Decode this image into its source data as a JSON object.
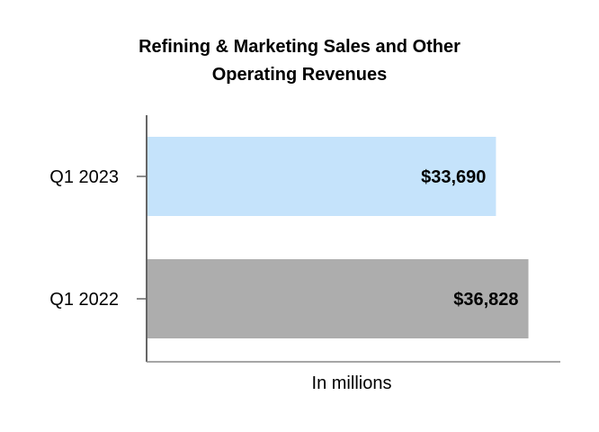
{
  "chart_data": {
    "type": "bar",
    "orientation": "horizontal",
    "title_lines": [
      "Refining & Marketing Sales and Other",
      "Operating Revenues"
    ],
    "categories": [
      "Q1 2023",
      "Q1 2022"
    ],
    "values": [
      33690,
      36828
    ],
    "data_labels": [
      "$33,690",
      "$36,828"
    ],
    "bar_colors": [
      "#c5e3fb",
      "#adadad"
    ],
    "xlabel": "In millions",
    "ylabel": "",
    "xlim": [
      0,
      40000
    ],
    "grid": false,
    "legend": "none"
  }
}
